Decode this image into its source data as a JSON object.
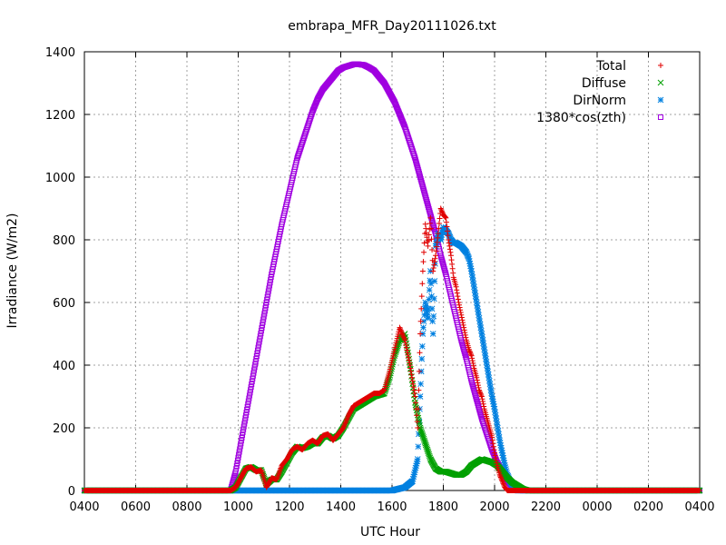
{
  "chart_data": {
    "type": "scatter",
    "title": "embrapa_MFR_Day20111026.txt",
    "xlabel": "UTC Hour",
    "ylabel": "Irradiance (W/m2)",
    "xlim": [
      0,
      24
    ],
    "ylim": [
      0,
      1400
    ],
    "x_ticks": [
      {
        "x": 0,
        "label": "0400"
      },
      {
        "x": 2,
        "label": "0600"
      },
      {
        "x": 4,
        "label": "0800"
      },
      {
        "x": 6,
        "label": "1000"
      },
      {
        "x": 8,
        "label": "1200"
      },
      {
        "x": 10,
        "label": "1400"
      },
      {
        "x": 12,
        "label": "1600"
      },
      {
        "x": 14,
        "label": "1800"
      },
      {
        "x": 16,
        "label": "2000"
      },
      {
        "x": 18,
        "label": "2200"
      },
      {
        "x": 20,
        "label": "0000"
      },
      {
        "x": 22,
        "label": "0200"
      },
      {
        "x": 24,
        "label": "0400"
      }
    ],
    "y_ticks": [
      0,
      200,
      400,
      600,
      800,
      1000,
      1200,
      1400
    ],
    "grid": true,
    "legend_position": "top-right",
    "series": [
      {
        "name": "Total",
        "marker": "plus",
        "color": "#e00000",
        "x": [
          0,
          5.7,
          5.9,
          6.1,
          6.3,
          6.5,
          6.7,
          6.9,
          7.1,
          7.3,
          7.5,
          7.7,
          7.9,
          8.1,
          8.3,
          8.5,
          8.7,
          8.9,
          9.1,
          9.3,
          9.5,
          9.7,
          9.9,
          10.1,
          10.3,
          10.5,
          10.7,
          10.9,
          11.1,
          11.3,
          11.5,
          11.7,
          11.9,
          12.1,
          12.3,
          12.5,
          12.7,
          12.9,
          13.0,
          13.1,
          13.2,
          13.3,
          13.4,
          13.5,
          13.6,
          13.7,
          13.8,
          13.9,
          14.0,
          14.1,
          14.2,
          14.3,
          14.4,
          14.5,
          14.6,
          14.7,
          14.8,
          14.9,
          15.0,
          15.1,
          15.2,
          15.3,
          15.4,
          15.5,
          15.6,
          15.7,
          15.8,
          15.9,
          16.0,
          16.1,
          16.2,
          16.3,
          16.4,
          16.5,
          16.6,
          16.7,
          16.8,
          16.9,
          17.0,
          17.1,
          17.2,
          17.3,
          17.4,
          17.5,
          17.6,
          17.7,
          18.0,
          24
        ],
        "values": [
          0,
          0,
          10,
          40,
          70,
          75,
          60,
          65,
          10,
          40,
          35,
          80,
          100,
          130,
          140,
          130,
          150,
          160,
          150,
          175,
          180,
          160,
          180,
          200,
          240,
          270,
          280,
          290,
          300,
          310,
          310,
          320,
          380,
          450,
          520,
          480,
          400,
          300,
          200,
          500,
          700,
          850,
          780,
          870,
          700,
          750,
          820,
          900,
          880,
          870,
          800,
          750,
          680,
          650,
          600,
          560,
          520,
          480,
          450,
          430,
          390,
          360,
          320,
          300,
          260,
          230,
          200,
          170,
          120,
          80,
          50,
          30,
          10,
          0,
          0,
          0,
          0,
          0,
          0,
          0,
          0,
          0,
          0,
          0,
          0,
          0,
          0,
          0
        ]
      },
      {
        "name": "Diffuse",
        "marker": "cross",
        "color": "#00a000",
        "x": [
          0,
          5.7,
          5.9,
          6.1,
          6.3,
          6.5,
          6.7,
          6.9,
          7.1,
          7.3,
          7.5,
          7.7,
          7.9,
          8.1,
          8.3,
          8.5,
          8.7,
          8.9,
          9.1,
          9.3,
          9.5,
          9.7,
          9.9,
          10.1,
          10.3,
          10.5,
          10.7,
          10.9,
          11.1,
          11.3,
          11.5,
          11.7,
          11.9,
          12.1,
          12.3,
          12.5,
          12.7,
          12.9,
          13.1,
          13.3,
          13.5,
          13.7,
          13.9,
          14.1,
          14.3,
          14.5,
          14.7,
          14.9,
          15.1,
          15.3,
          15.5,
          15.7,
          15.9,
          16.1,
          16.3,
          16.5,
          16.7,
          16.9,
          17.1,
          17.3,
          17.5,
          17.7,
          18.0,
          24
        ],
        "values": [
          0,
          0,
          10,
          40,
          70,
          75,
          65,
          65,
          20,
          35,
          35,
          60,
          90,
          120,
          140,
          135,
          140,
          150,
          150,
          170,
          175,
          165,
          175,
          200,
          230,
          260,
          270,
          280,
          290,
          300,
          305,
          310,
          360,
          430,
          480,
          500,
          400,
          280,
          200,
          150,
          100,
          70,
          60,
          60,
          55,
          50,
          50,
          60,
          80,
          90,
          100,
          95,
          90,
          80,
          60,
          40,
          25,
          15,
          5,
          0,
          0,
          0,
          0,
          0
        ]
      },
      {
        "name": "DirNorm",
        "marker": "star",
        "color": "#0080e0",
        "x": [
          0,
          5.7,
          6.0,
          6.5,
          7.0,
          7.5,
          8.0,
          8.5,
          9.0,
          9.5,
          10.0,
          10.5,
          11.0,
          11.5,
          12.0,
          12.5,
          12.8,
          13.0,
          13.1,
          13.2,
          13.3,
          13.4,
          13.5,
          13.6,
          13.7,
          13.8,
          13.9,
          14.0,
          14.1,
          14.2,
          14.3,
          14.4,
          14.5,
          14.6,
          14.7,
          14.8,
          14.9,
          15.0,
          15.1,
          15.2,
          15.3,
          15.4,
          15.5,
          15.6,
          15.7,
          15.8,
          15.9,
          16.0,
          16.1,
          16.2,
          16.3,
          16.4,
          16.5,
          16.6,
          16.7,
          16.8,
          16.9,
          17.0,
          17.1,
          17.2,
          17.3,
          17.5,
          18.0,
          24
        ],
        "values": [
          0,
          0,
          0,
          0,
          0,
          0,
          0,
          0,
          0,
          0,
          0,
          0,
          0,
          0,
          0,
          10,
          30,
          100,
          300,
          500,
          600,
          550,
          700,
          500,
          780,
          820,
          800,
          840,
          830,
          820,
          800,
          790,
          790,
          785,
          780,
          770,
          760,
          740,
          700,
          650,
          600,
          550,
          500,
          450,
          400,
          350,
          300,
          260,
          210,
          160,
          120,
          80,
          50,
          30,
          15,
          5,
          0,
          0,
          0,
          0,
          0,
          0,
          0,
          0
        ]
      },
      {
        "name": "1380*cos(zth)",
        "marker": "square",
        "color": "#a000e0",
        "x": [
          0,
          5.7,
          5.9,
          6.1,
          6.3,
          6.5,
          6.7,
          6.9,
          7.1,
          7.3,
          7.5,
          7.7,
          7.9,
          8.1,
          8.3,
          8.5,
          8.7,
          8.9,
          9.1,
          9.3,
          9.5,
          9.7,
          9.9,
          10.1,
          10.3,
          10.5,
          10.7,
          10.9,
          11.1,
          11.3,
          11.5,
          11.7,
          11.9,
          12.1,
          12.3,
          12.5,
          12.7,
          12.9,
          13.1,
          13.3,
          13.5,
          13.7,
          13.9,
          14.1,
          14.3,
          14.5,
          14.7,
          14.9,
          15.1,
          15.3,
          15.5,
          15.7,
          15.9,
          16.1,
          16.3,
          16.5,
          16.7,
          16.9,
          17.1,
          17.3,
          17.5,
          17.7,
          17.9,
          18.1,
          24
        ],
        "values": [
          0,
          0,
          60,
          150,
          240,
          330,
          420,
          510,
          600,
          690,
          770,
          850,
          920,
          990,
          1060,
          1110,
          1160,
          1210,
          1250,
          1280,
          1300,
          1320,
          1340,
          1350,
          1355,
          1360,
          1360,
          1358,
          1350,
          1340,
          1320,
          1300,
          1270,
          1240,
          1200,
          1160,
          1110,
          1060,
          1000,
          940,
          880,
          820,
          750,
          690,
          620,
          550,
          480,
          420,
          350,
          290,
          230,
          180,
          130,
          90,
          60,
          30,
          10,
          0,
          0,
          0,
          0,
          0,
          0,
          0,
          0
        ]
      }
    ]
  }
}
